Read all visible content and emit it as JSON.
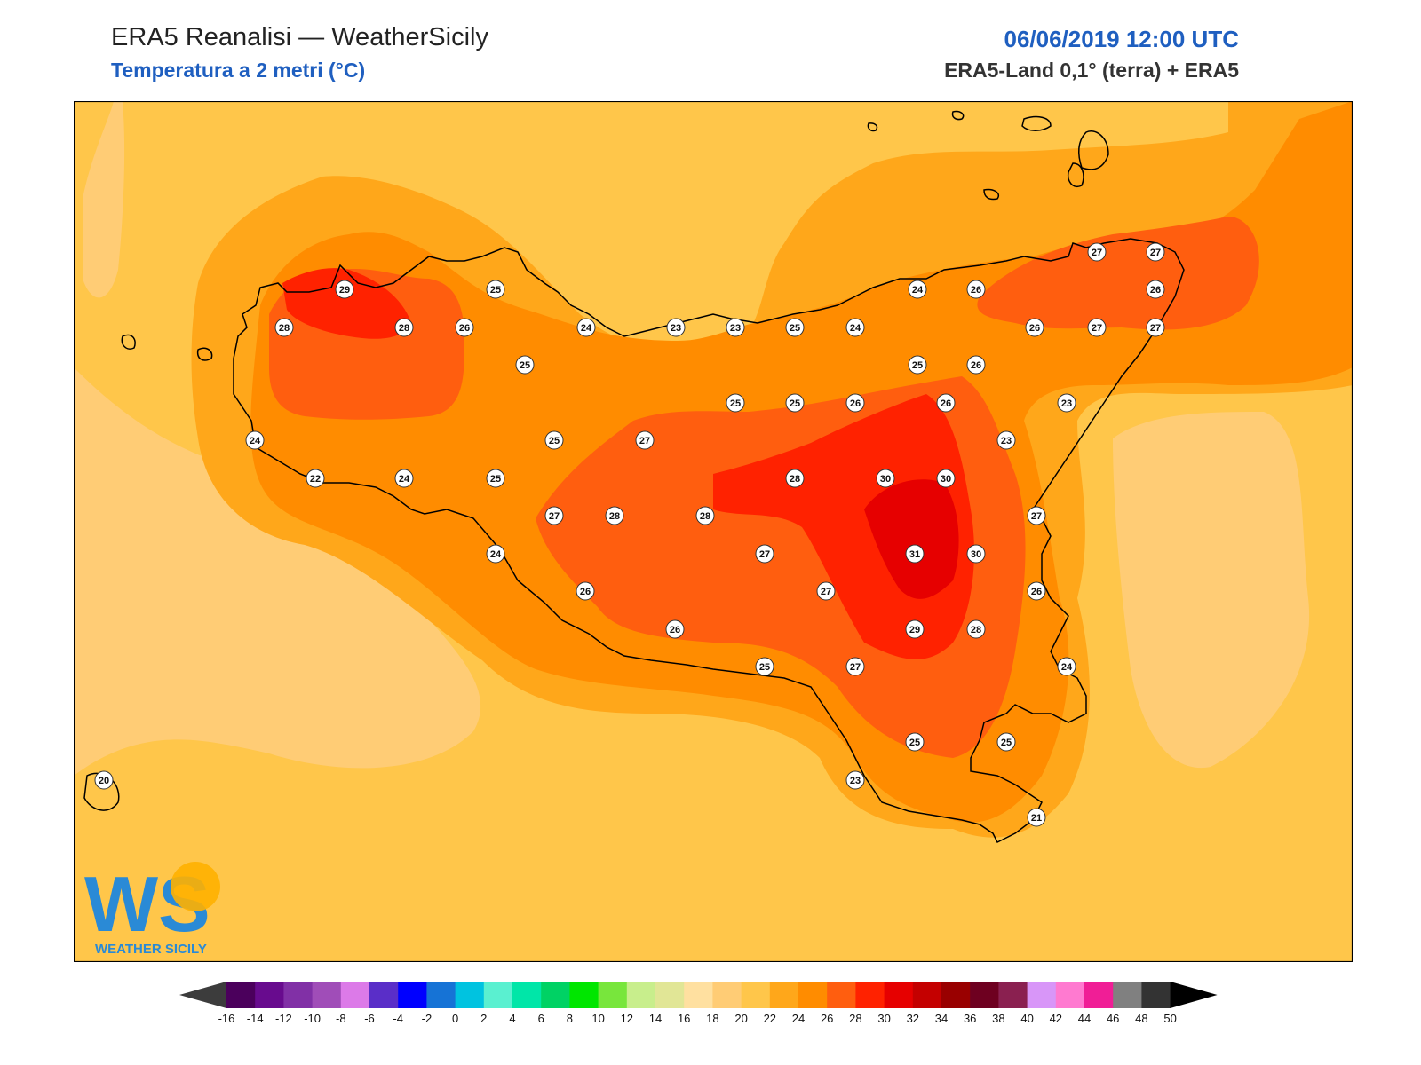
{
  "header": {
    "title": "ERA5 Reanalisi — WeatherSicily",
    "subtitle": "Temperatura a 2 metri (°C)",
    "datetime": "06/06/2019 12:00 UTC",
    "source": "ERA5-Land 0,1° (terra) + ERA5"
  },
  "colors": {
    "accent": "#1f5fc0",
    "t18": "#ffcc75",
    "t20": "#ffc64a",
    "t22": "#ffa71a",
    "t24": "#ff8c00",
    "t26": "#ff5e0f",
    "t28": "#ff2200",
    "t30": "#e60000"
  },
  "logo": {
    "mark": "WS",
    "name": "WEATHER SICILY"
  },
  "colorbar": {
    "ticks": [
      "-16",
      "-14",
      "-12",
      "-10",
      "-8",
      "-6",
      "-4",
      "-2",
      "0",
      "2",
      "4",
      "6",
      "8",
      "10",
      "12",
      "14",
      "16",
      "18",
      "20",
      "22",
      "24",
      "26",
      "28",
      "30",
      "32",
      "34",
      "36",
      "38",
      "40",
      "42",
      "44",
      "46",
      "48",
      "50"
    ],
    "colors": [
      "#4b005c",
      "#680b8e",
      "#8130a6",
      "#a04db8",
      "#dc7ae8",
      "#5a2ec8",
      "#0000ff",
      "#1673d6",
      "#00c3e0",
      "#5af0d0",
      "#00e6a8",
      "#00d264",
      "#00e600",
      "#78e63c",
      "#c8ee8c",
      "#e1e696",
      "#ffe0a0",
      "#ffcc75",
      "#ffc64a",
      "#ffa71a",
      "#ff8c00",
      "#ff5e0f",
      "#ff2200",
      "#e60000",
      "#c40000",
      "#990000",
      "#6e0020",
      "#8a2050",
      "#d896f8",
      "#ff7ad0",
      "#f01e96",
      "#808080",
      "#333333"
    ],
    "under_color": "#3c3c3c",
    "over_color": "#000000"
  },
  "stations": [
    {
      "v": "29"
    },
    {
      "v": "25"
    },
    {
      "v": "28"
    },
    {
      "v": "28"
    },
    {
      "v": "26"
    },
    {
      "v": "24"
    },
    {
      "v": "25"
    },
    {
      "v": "23"
    },
    {
      "v": "23"
    },
    {
      "v": "25"
    },
    {
      "v": "24"
    },
    {
      "v": "24"
    },
    {
      "v": "26"
    },
    {
      "v": "27"
    },
    {
      "v": "27"
    },
    {
      "v": "26"
    },
    {
      "v": "26"
    },
    {
      "v": "27"
    },
    {
      "v": "27"
    },
    {
      "v": "26"
    },
    {
      "v": "25"
    },
    {
      "v": "25"
    },
    {
      "v": "26"
    },
    {
      "v": "25"
    },
    {
      "v": "26"
    },
    {
      "v": "23"
    },
    {
      "v": "24"
    },
    {
      "v": "25"
    },
    {
      "v": "27"
    },
    {
      "v": "23"
    },
    {
      "v": "22"
    },
    {
      "v": "24"
    },
    {
      "v": "25"
    },
    {
      "v": "28"
    },
    {
      "v": "30"
    },
    {
      "v": "30"
    },
    {
      "v": "27"
    },
    {
      "v": "28"
    },
    {
      "v": "28"
    },
    {
      "v": "27"
    },
    {
      "v": "24"
    },
    {
      "v": "27"
    },
    {
      "v": "31"
    },
    {
      "v": "30"
    },
    {
      "v": "26"
    },
    {
      "v": "26"
    },
    {
      "v": "27"
    },
    {
      "v": "26"
    },
    {
      "v": "29"
    },
    {
      "v": "28"
    },
    {
      "v": "25"
    },
    {
      "v": "27"
    },
    {
      "v": "24"
    },
    {
      "v": "25"
    },
    {
      "v": "25"
    },
    {
      "v": "23"
    },
    {
      "v": "21"
    },
    {
      "v": "20"
    }
  ]
}
